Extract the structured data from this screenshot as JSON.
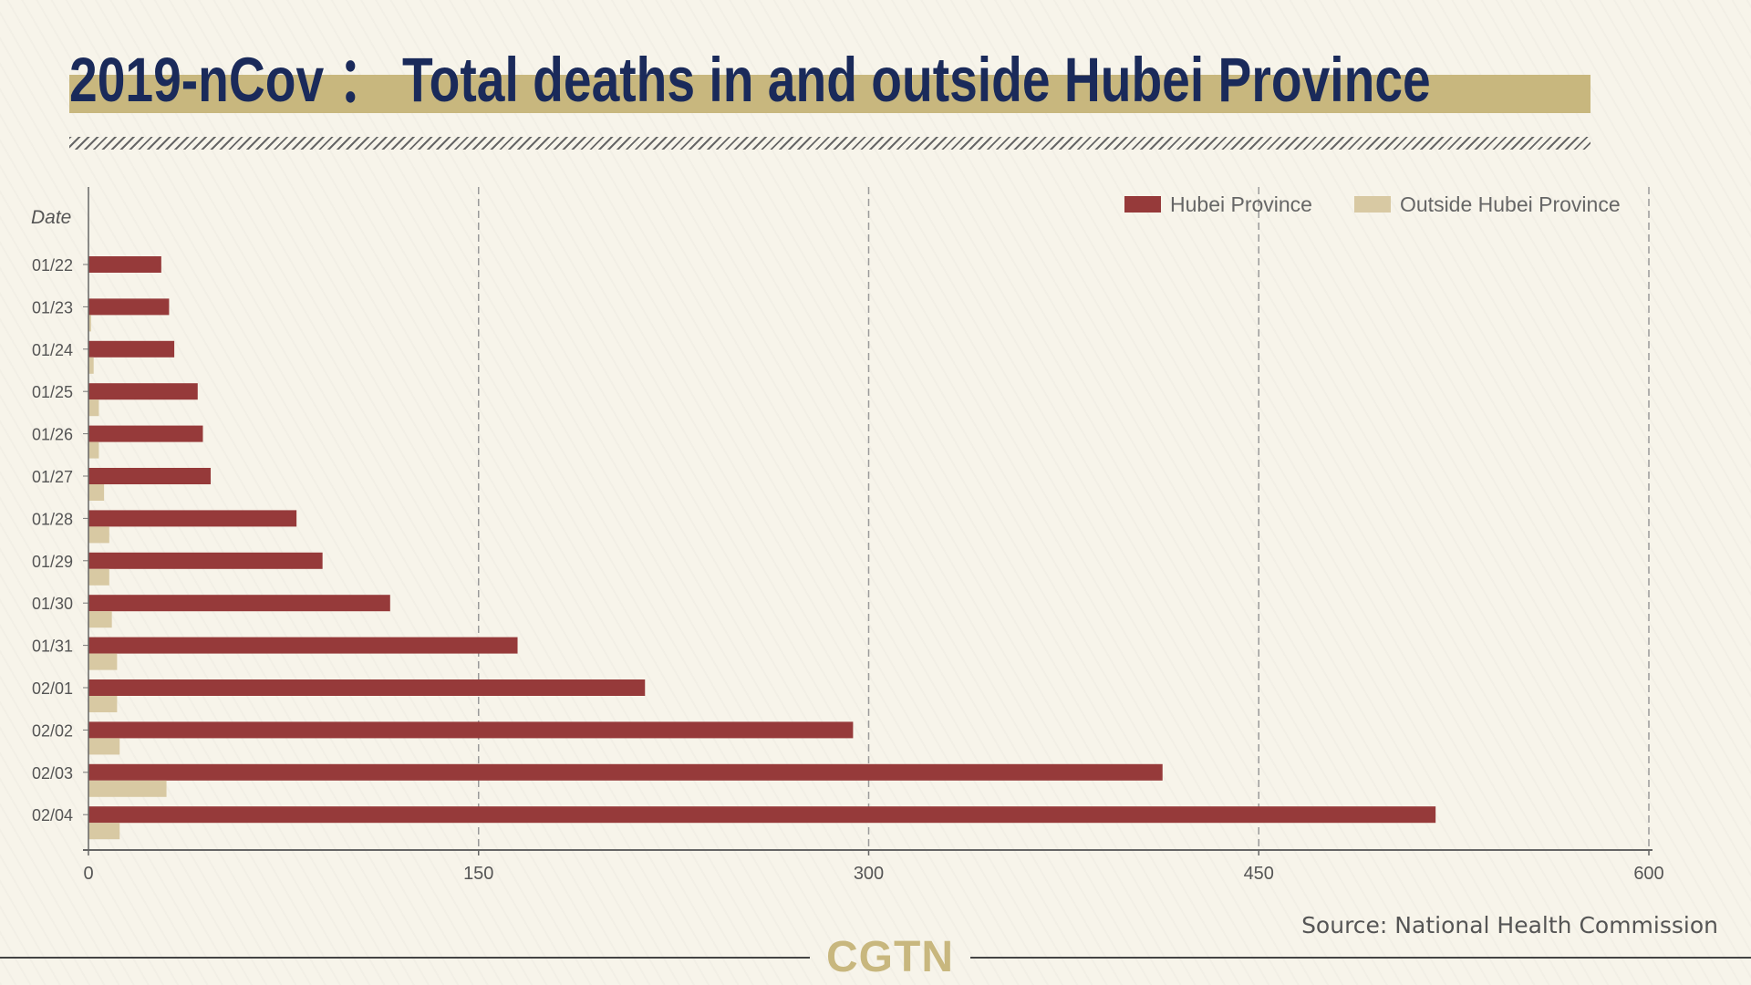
{
  "title": "2019-nCov ： Total deaths in and outside Hubei Province",
  "source": "Source: National Health Commission",
  "logo": "CGTN",
  "colors": {
    "hubei": "#963a3a",
    "outside": "#d8c9a3",
    "title": "#1a2a5a",
    "title_band": "#c8b77e"
  },
  "chart_data": {
    "type": "bar",
    "orientation": "horizontal",
    "title": "2019-nCov ： Total deaths in and outside Hubei Province",
    "xlabel": "",
    "ylabel": "Date",
    "xlim": [
      0,
      600
    ],
    "xticks": [
      0,
      150,
      300,
      450,
      600
    ],
    "grid": "vertical dashed",
    "legend_position": "top-right",
    "categories": [
      "01/22",
      "01/23",
      "01/24",
      "01/25",
      "01/26",
      "01/27",
      "01/28",
      "01/29",
      "01/30",
      "01/31",
      "02/01",
      "02/02",
      "02/03",
      "02/04"
    ],
    "series": [
      {
        "name": "Hubei Province",
        "values": [
          28,
          31,
          33,
          42,
          44,
          47,
          80,
          90,
          116,
          165,
          214,
          294,
          413,
          518
        ]
      },
      {
        "name": "Outside Hubei Province",
        "values": [
          0,
          1,
          2,
          4,
          4,
          6,
          8,
          8,
          9,
          11,
          11,
          12,
          30,
          12
        ]
      }
    ]
  }
}
